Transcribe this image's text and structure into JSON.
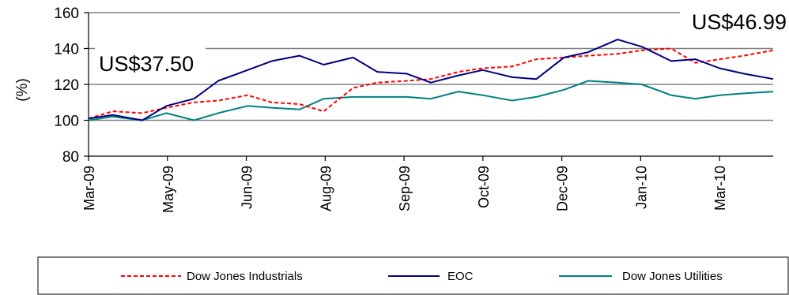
{
  "chart_data": {
    "type": "line",
    "ylabel": "(%)",
    "ylim": [
      80,
      160
    ],
    "yticks": [
      80,
      100,
      120,
      140,
      160
    ],
    "grid": true,
    "legend_position": "bottom",
    "x_tick_labels": [
      "Mar-09",
      "May-09",
      "Jun-09",
      "Aug-09",
      "Sep-09",
      "Oct-09",
      "Dec-09",
      "Jan-10",
      "Mar-10"
    ],
    "x": [
      "2009-03-01",
      "2009-03-15",
      "2009-04-01",
      "2009-04-15",
      "2009-05-01",
      "2009-05-15",
      "2009-06-01",
      "2009-06-15",
      "2009-07-01",
      "2009-07-15",
      "2009-08-01",
      "2009-08-15",
      "2009-09-01",
      "2009-09-15",
      "2009-10-01",
      "2009-10-15",
      "2009-11-01",
      "2009-11-15",
      "2009-12-01",
      "2009-12-15",
      "2010-01-01",
      "2010-01-15",
      "2010-02-01",
      "2010-02-15",
      "2010-03-01",
      "2010-03-15",
      "2010-04-01"
    ],
    "series": [
      {
        "name": "Dow Jones Industrials",
        "color": "#ff0000",
        "dash": "dashed",
        "values": [
          101,
          105,
          104,
          107,
          110,
          111,
          114,
          110,
          109,
          105,
          118,
          121,
          122,
          123,
          127,
          129,
          130,
          134,
          135,
          136,
          137,
          139,
          140,
          132,
          134,
          136,
          139
        ]
      },
      {
        "name": "EOC",
        "color": "#000080",
        "dash": "solid",
        "values": [
          101,
          103,
          100,
          108,
          112,
          122,
          128,
          133,
          136,
          131,
          135,
          127,
          126,
          121,
          125,
          128,
          124,
          123,
          135,
          138,
          145,
          141,
          133,
          134,
          129,
          126,
          123
        ]
      },
      {
        "name": "Dow Jones Utilities",
        "color": "#008080",
        "dash": "solid",
        "values": [
          100,
          102,
          100,
          104,
          100,
          104,
          108,
          107,
          106,
          112,
          113,
          113,
          113,
          112,
          116,
          114,
          111,
          113,
          117,
          122,
          121,
          120,
          114,
          112,
          114,
          115,
          116
        ]
      }
    ],
    "annotations": [
      {
        "text": "US$37.50"
      },
      {
        "text": "US$46.99"
      }
    ]
  }
}
